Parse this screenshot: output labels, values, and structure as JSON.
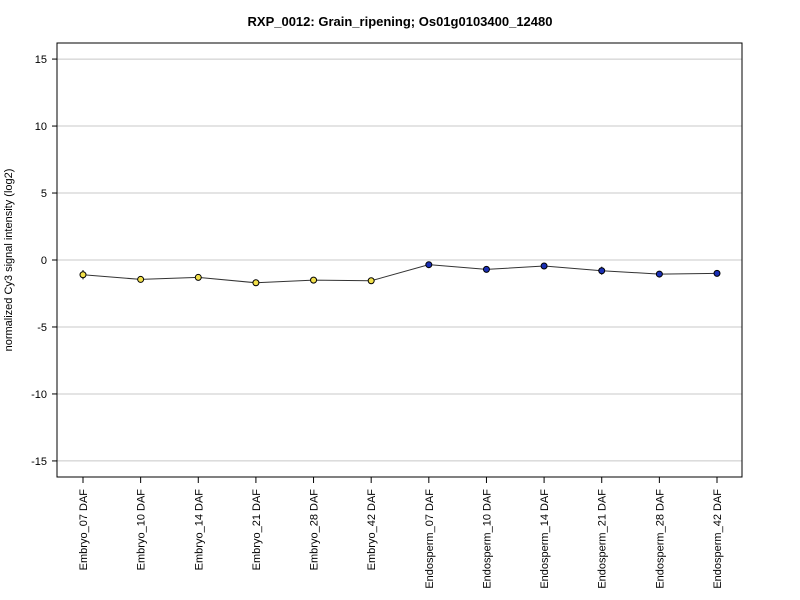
{
  "chart_data": {
    "type": "line",
    "title": "RXP_0012: Grain_ripening; Os01g0103400_12480",
    "xlabel": "",
    "ylabel": "normalized Cy3 signal intensity (log2)",
    "ylim": [
      -16.2,
      16.2
    ],
    "yticks": [
      -15,
      -10,
      -5,
      0,
      5,
      10,
      15
    ],
    "grid": "horizontal",
    "categories": [
      "Embryo_07 DAF",
      "Embryo_10 DAF",
      "Embryo_14 DAF",
      "Embryo_21 DAF",
      "Embryo_28 DAF",
      "Embryo_42 DAF",
      "Endosperm_07 DAF",
      "Endosperm_10 DAF",
      "Endosperm_14 DAF",
      "Endosperm_21 DAF",
      "Endosperm_28 DAF",
      "Endosperm_42 DAF"
    ],
    "values": [
      -1.1,
      -1.45,
      -1.3,
      -1.7,
      -1.5,
      -1.55,
      -0.35,
      -0.7,
      -0.45,
      -0.8,
      -1.05,
      -1.0
    ],
    "errors": [
      0.35,
      0.1,
      0.12,
      0.1,
      0.1,
      0.08,
      0.08,
      0.12,
      0.1,
      0.3,
      0.08,
      0.08
    ],
    "point_colors": [
      "#f2e04a",
      "#f2e04a",
      "#f2e04a",
      "#f2e04a",
      "#f2e04a",
      "#f2e04a",
      "#1a2fb5",
      "#1a2fb5",
      "#1a2fb5",
      "#1a2fb5",
      "#1a2fb5",
      "#1a2fb5"
    ],
    "line_color": "#333333",
    "grid_color": "#c8c8c8"
  }
}
